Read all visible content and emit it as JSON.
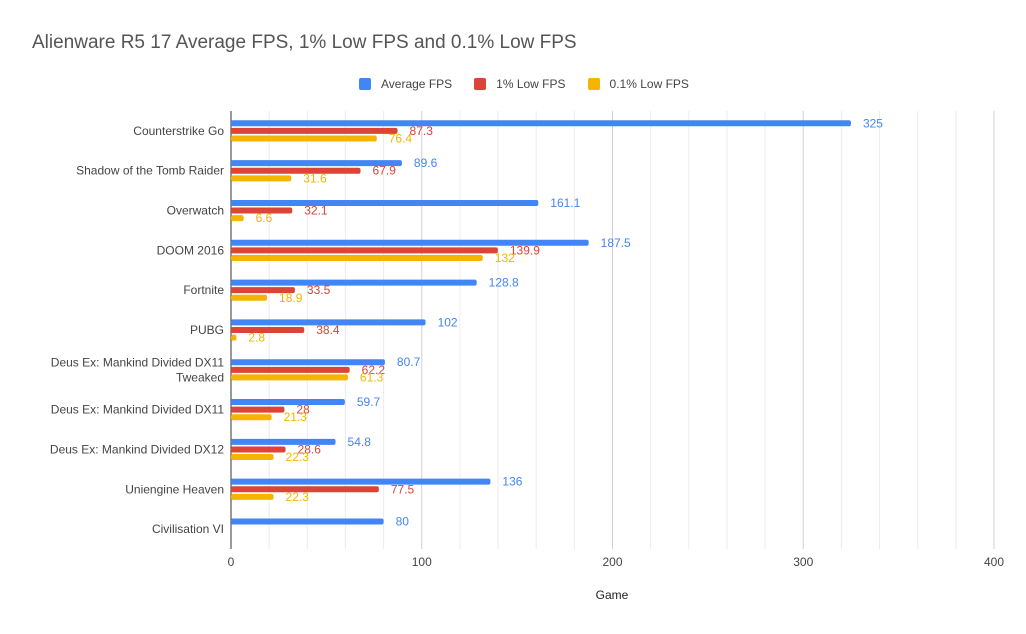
{
  "chart_data": {
    "type": "bar",
    "orientation": "horizontal",
    "title": "Alienware R5 17 Average FPS, 1% Low FPS and 0.1% Low FPS",
    "xlabel": "Game",
    "ylabel": "",
    "xlim": [
      0,
      400
    ],
    "x_ticks": [
      "0",
      "100",
      "200",
      "300",
      "400"
    ],
    "grid": true,
    "legend_position": "top",
    "categories": [
      [
        "Counterstrike Go"
      ],
      [
        "Shadow of the Tomb Raider"
      ],
      [
        "Overwatch"
      ],
      [
        "DOOM 2016"
      ],
      [
        "Fortnite"
      ],
      [
        "PUBG"
      ],
      [
        "Deus Ex: Mankind Divided DX11",
        "Tweaked"
      ],
      [
        "Deus Ex: Mankind Divided DX11"
      ],
      [
        "Deus Ex: Mankind Divided DX12"
      ],
      [
        "Uniengine Heaven"
      ],
      [
        "Civilisation VI"
      ]
    ],
    "series": [
      {
        "name": "Average FPS",
        "color": "#4285f4",
        "values": [
          325,
          89.6,
          161.1,
          187.5,
          128.8,
          102,
          80.7,
          59.7,
          54.8,
          136,
          80
        ]
      },
      {
        "name": "1% Low FPS",
        "color": "#db4437",
        "values": [
          87.3,
          67.9,
          32.1,
          139.9,
          33.5,
          38.4,
          62.2,
          28,
          28.6,
          77.5,
          null
        ]
      },
      {
        "name": "0.1% Low FPS",
        "color": "#f4b400",
        "values": [
          76.4,
          31.6,
          6.6,
          132,
          18.9,
          2.8,
          61.3,
          21.3,
          22.3,
          22.3,
          null
        ]
      }
    ]
  }
}
